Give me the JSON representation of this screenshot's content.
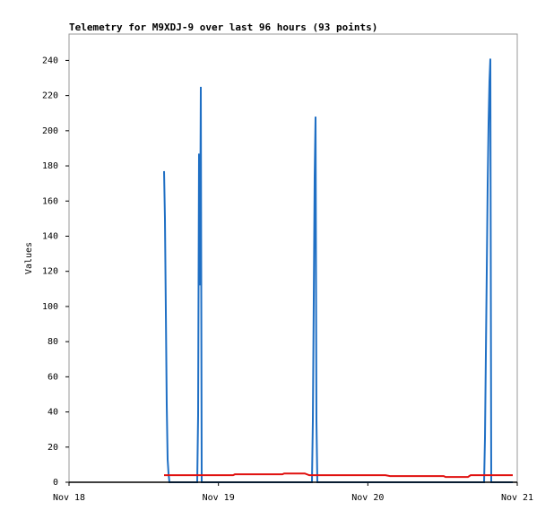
{
  "chart_data": {
    "type": "line",
    "title": "Telemetry for M9XDJ-9 over last 96 hours (93 points)",
    "y_label": "Values",
    "xlim": [
      18,
      21
    ],
    "xticks": [
      {
        "value": 18,
        "label": "Nov 18"
      },
      {
        "value": 19,
        "label": "Nov 19"
      },
      {
        "value": 20,
        "label": "Nov 20"
      },
      {
        "value": 21,
        "label": "Nov 21"
      }
    ],
    "ylim": [
      0,
      255
    ],
    "yticks": [
      0,
      20,
      40,
      60,
      80,
      100,
      120,
      140,
      160,
      180,
      200,
      220,
      240
    ],
    "grid": false,
    "series": [
      {
        "color": "#1f6fc4",
        "x": [
          18.636,
          18.642,
          18.648,
          18.654,
          18.66,
          18.666,
          18.672,
          18.858,
          18.864,
          18.87,
          18.876,
          18.882,
          18.888,
          19.626,
          19.632,
          19.638,
          19.644,
          19.65,
          19.656,
          19.662,
          20.778,
          20.784,
          20.79,
          20.796,
          20.802,
          20.808,
          20.814,
          20.82,
          20.826,
          20.97
        ],
        "values": [
          177,
          150,
          97,
          44,
          13,
          5,
          0,
          0,
          38,
          187,
          112,
          225,
          0,
          0,
          35,
          104,
          174,
          208,
          35,
          0,
          0,
          25,
          73,
          120,
          169,
          204,
          228,
          241,
          0,
          0
        ]
      },
      {
        "color": "#e0100f",
        "x": [
          18.636,
          19.098,
          19.11,
          19.428,
          19.44,
          19.578,
          19.608,
          20.118,
          20.148,
          20.508,
          20.52,
          20.67,
          20.688,
          20.97
        ],
        "values": [
          4,
          4,
          4.5,
          4.5,
          5,
          5,
          4,
          4,
          3.5,
          3.5,
          3,
          3,
          4,
          4
        ]
      }
    ]
  }
}
